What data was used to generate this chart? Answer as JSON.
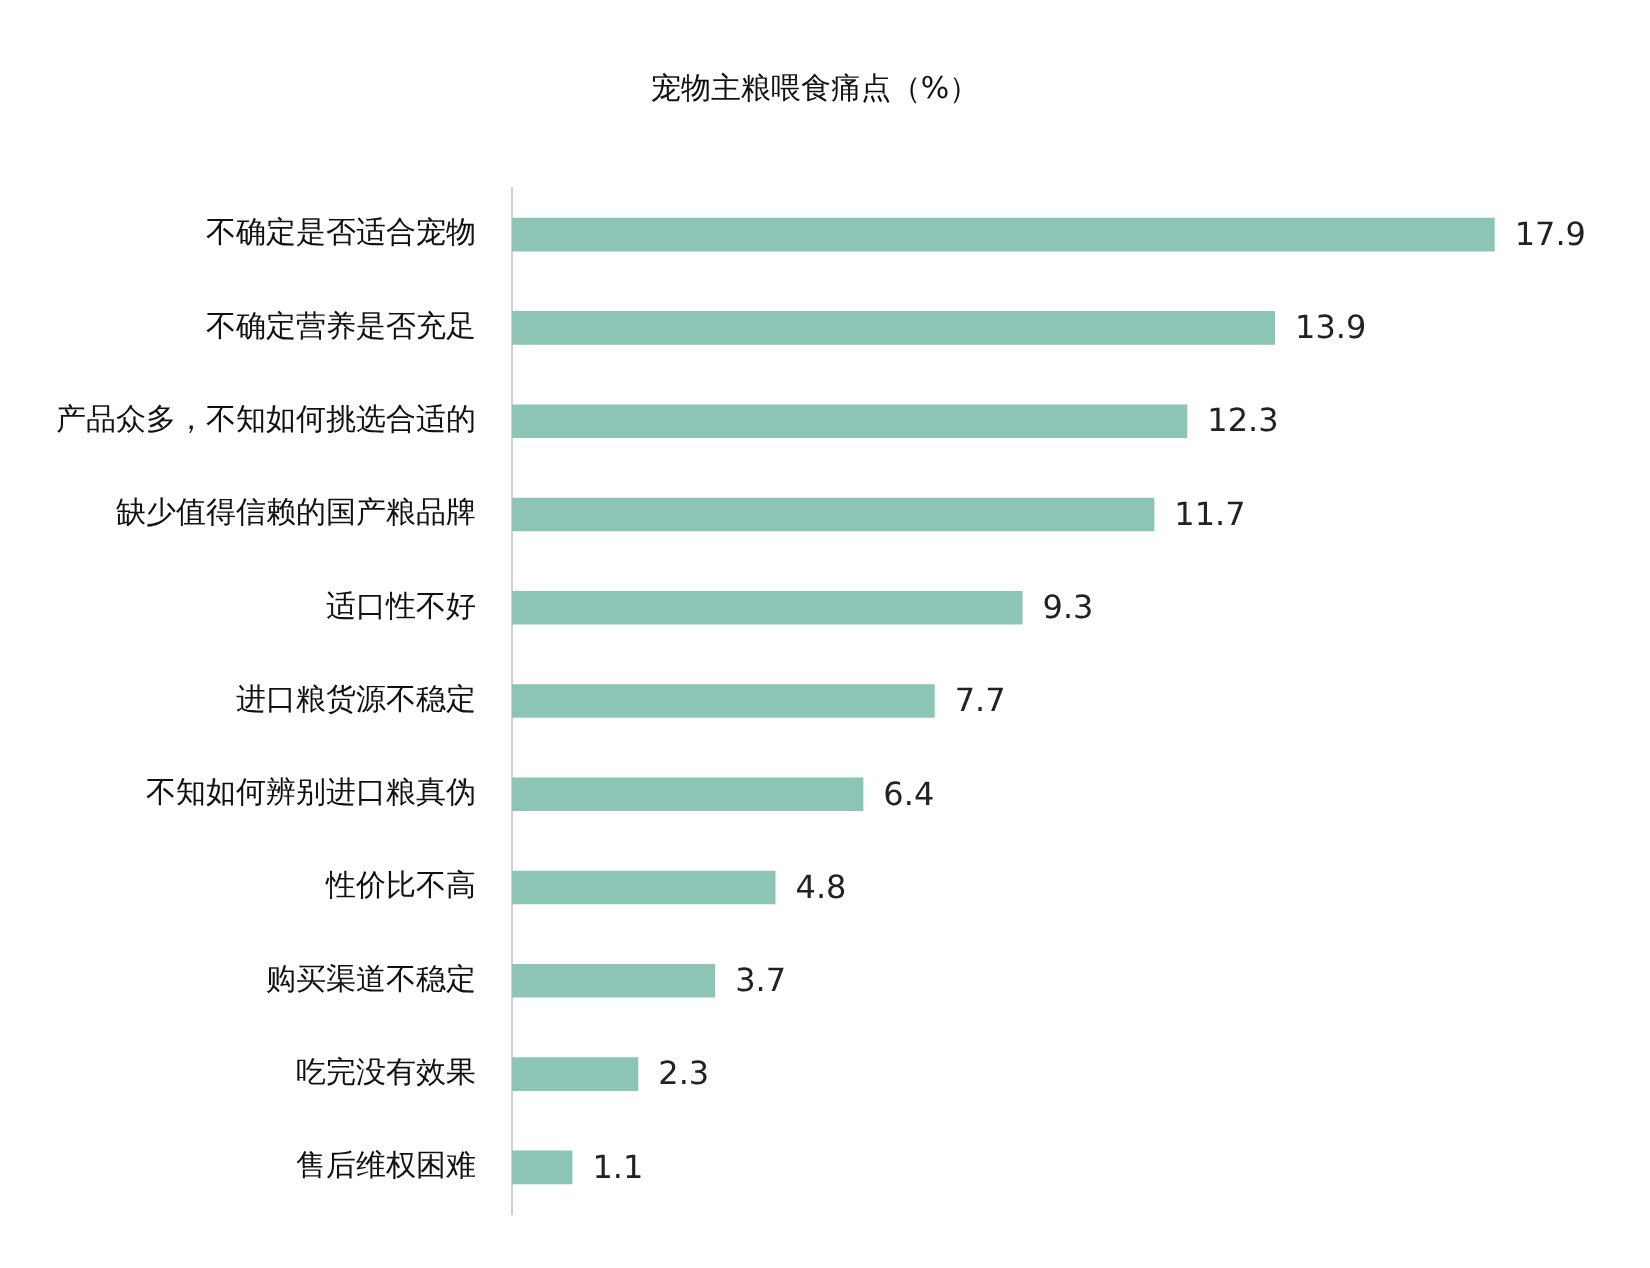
{
  "chart_data": {
    "type": "bar",
    "orientation": "horizontal",
    "title": "宠物主粮喂食痛点（%）",
    "categories": [
      "不确定是否适合宠物",
      "不确定营养是否充足",
      "产品众多，不知如何挑选合适的",
      "缺少值得信赖的国产粮品牌",
      "适口性不好",
      "进口粮货源不稳定",
      "不知如何辨别进口粮真伪",
      "性价比不高",
      "购买渠道不稳定",
      "吃完没有效果",
      "售后维权困难"
    ],
    "values": [
      17.9,
      13.9,
      12.3,
      11.7,
      9.3,
      7.7,
      6.4,
      4.8,
      3.7,
      2.3,
      1.1
    ],
    "color": "#8cc5b5",
    "data_labels": true,
    "tick_labels": "y",
    "grid": false,
    "legend": false
  }
}
